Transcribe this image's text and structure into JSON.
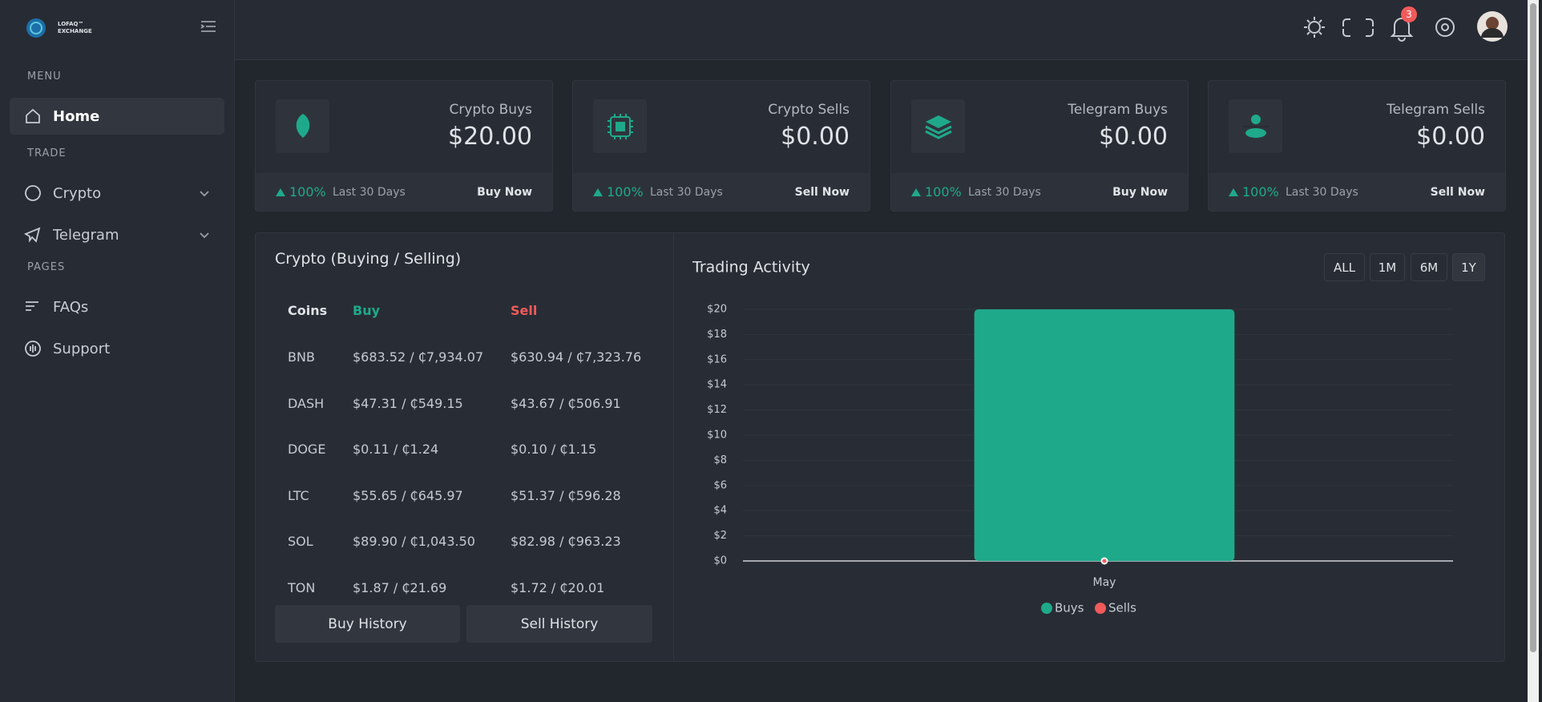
{
  "sidebar": {
    "logo": "LOFAQ™ EXCHANGE",
    "sections": [
      {
        "label": "MENU",
        "items": [
          "Home"
        ]
      },
      {
        "label": "TRADE",
        "items": [
          "Crypto",
          "Telegram"
        ]
      },
      {
        "label": "PAGES",
        "items": [
          "FAQs",
          "Support"
        ]
      }
    ]
  },
  "header": {
    "notifications": "3"
  },
  "stats": [
    {
      "title": "Crypto Buys",
      "value": "$20.00",
      "change": "100%",
      "period": "Last 30 Days",
      "action": "Buy Now"
    },
    {
      "title": "Crypto Sells",
      "value": "$0.00",
      "change": "100%",
      "period": "Last 30 Days",
      "action": "Sell Now"
    },
    {
      "title": "Telegram Buys",
      "value": "$0.00",
      "change": "100%",
      "period": "Last 30 Days",
      "action": "Buy Now"
    },
    {
      "title": "Telegram Sells",
      "value": "$0.00",
      "change": "100%",
      "period": "Last 30 Days",
      "action": "Sell Now"
    }
  ],
  "crypto_table": {
    "title": "Crypto (Buying / Selling)",
    "headers": [
      "Coins",
      "Buy",
      "Sell"
    ],
    "rows": [
      [
        "BNB",
        "$683.52 / ₵7,934.07",
        "$630.94 / ₵7,323.76"
      ],
      [
        "DASH",
        "$47.31 / ₵549.15",
        "$43.67 / ₵506.91"
      ],
      [
        "DOGE",
        "$0.11 / ₵1.24",
        "$0.10 / ₵1.15"
      ],
      [
        "LTC",
        "$55.65 / ₵645.97",
        "$51.37 / ₵596.28"
      ],
      [
        "SOL",
        "$89.90 / ₵1,043.50",
        "$82.98 / ₵963.23"
      ],
      [
        "TON",
        "$1.87 / ₵21.69",
        "$1.72 / ₵20.01"
      ]
    ],
    "buttons": [
      "Buy History",
      "Sell History"
    ]
  },
  "chart_data": {
    "type": "bar",
    "title": "Trading Activity",
    "ranges": [
      "ALL",
      "1M",
      "6M",
      "1Y"
    ],
    "active_range": "1Y",
    "categories": [
      "May"
    ],
    "series": [
      {
        "name": "Buys",
        "color": "#1fa98b",
        "values": [
          20
        ]
      },
      {
        "name": "Sells",
        "color": "#f05a5a",
        "values": [
          0
        ]
      }
    ],
    "ylim": [
      0,
      20
    ],
    "yticks": [
      {
        "value": 0,
        "label": "$0"
      },
      {
        "value": 2,
        "label": "$2"
      },
      {
        "value": 4,
        "label": "$4"
      },
      {
        "value": 6,
        "label": "$6"
      },
      {
        "value": 8,
        "label": "$8"
      },
      {
        "value": 10,
        "label": "$10"
      },
      {
        "value": 12,
        "label": "$12"
      },
      {
        "value": 14,
        "label": "$14"
      },
      {
        "value": 16,
        "label": "$16"
      },
      {
        "value": 18,
        "label": "$18"
      },
      {
        "value": 20,
        "label": "$20"
      }
    ],
    "grid": true
  }
}
